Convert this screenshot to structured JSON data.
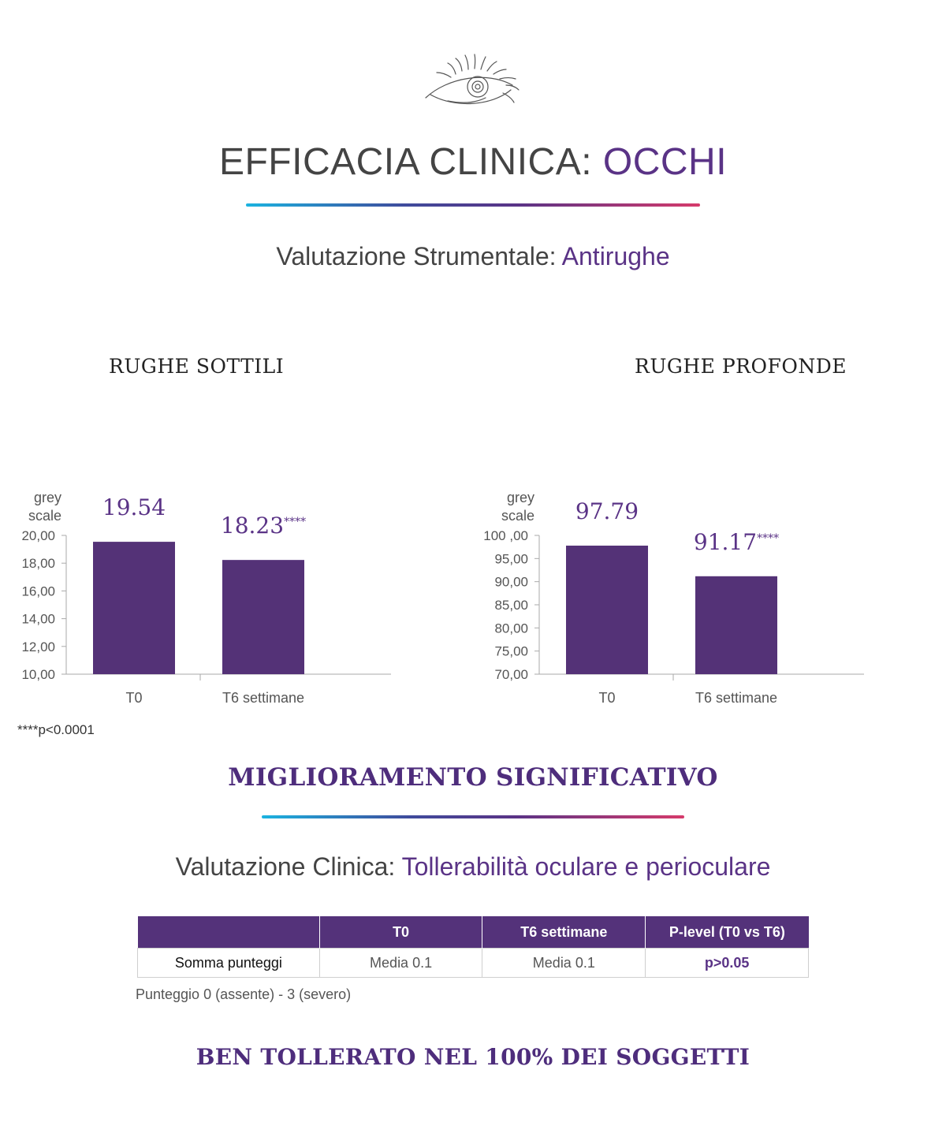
{
  "header": {
    "icon": "eye-icon",
    "title_main": "EFFICACIA CLINICA: ",
    "title_accent": "OCCHI"
  },
  "section1": {
    "subtitle_main": "Valutazione Strumentale: ",
    "subtitle_accent": "Antirughe"
  },
  "chart_data": [
    {
      "type": "bar",
      "title": "RUGHE SOTTILI",
      "ylabel": "grey scale",
      "categories": [
        "T0",
        "T6 settimane"
      ],
      "values": [
        19.54,
        18.23
      ],
      "data_labels": [
        "19.54",
        "18.23"
      ],
      "significance": [
        "",
        "****"
      ],
      "ylim": [
        10,
        20
      ],
      "yticks": [
        10,
        12,
        14,
        16,
        18,
        20
      ],
      "ytick_labels": [
        "10,00",
        "12,00",
        "14,00",
        "16,00",
        "18,00",
        "20,00"
      ],
      "grid": false,
      "bar_color": "#543277"
    },
    {
      "type": "bar",
      "title": "RUGHE PROFONDE",
      "ylabel": "grey scale",
      "categories": [
        "T0",
        "T6 settimane"
      ],
      "values": [
        97.79,
        91.17
      ],
      "data_labels": [
        "97.79",
        "91.17"
      ],
      "significance": [
        "",
        "****"
      ],
      "ylim": [
        70,
        100
      ],
      "yticks": [
        70,
        75,
        80,
        85,
        90,
        95,
        100
      ],
      "ytick_labels": [
        "70,00",
        "75,00",
        "80,00",
        "85,00",
        "90,00",
        "95,00",
        "100 ,00"
      ],
      "grid": false,
      "bar_color": "#543277"
    }
  ],
  "footnote": "****p<0.0001",
  "conclusion_1": "MIGLIORAMENTO SIGNIFICATIVO",
  "section2": {
    "subtitle_main": "Valutazione Clinica: ",
    "subtitle_accent": "Tollerabilità oculare e perioculare"
  },
  "table": {
    "headers": [
      "",
      "T0",
      "T6 settimane",
      "P-level (T0 vs T6)"
    ],
    "row": {
      "label": "Somma punteggi",
      "t0": "Media 0.1",
      "t6": "Media 0.1",
      "plevel": "p>0.05"
    }
  },
  "table_note": "Punteggio 0 (assente) - 3 (severo)",
  "conclusion_2": "BEN TOLLERATO NEL 100% DEI SOGGETTI",
  "colors": {
    "accent": "#5a3386",
    "bar": "#543277",
    "gradient": [
      "#1bb3e0",
      "#3f4b9c",
      "#5a3386",
      "#d63a6b"
    ]
  }
}
